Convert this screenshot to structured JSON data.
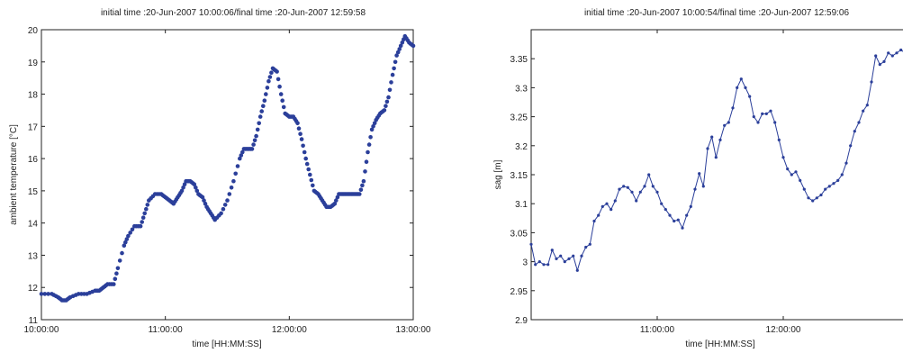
{
  "chart_data": [
    {
      "type": "scatter",
      "title": "initial time :20-Jun-2007 10:00:06/final time :20-Jun-2007 12:59:58",
      "xlabel": "time [HH:MM:SS]",
      "ylabel": "ambient temperature [°C]",
      "xlim": [
        "10:00:00",
        "13:00:00"
      ],
      "ylim": [
        11,
        20
      ],
      "xticks": [
        "10:00:00",
        "11:00:00",
        "12:00:00",
        "13:00:00"
      ],
      "yticks": [
        "11",
        "12",
        "13",
        "14",
        "15",
        "16",
        "17",
        "18",
        "19",
        "20"
      ],
      "grid": false,
      "marker_color": "#2b3f9a",
      "series": [
        {
          "x": [
            "10:00",
            "10:05",
            "10:08",
            "10:10",
            "10:12",
            "10:14",
            "10:18",
            "10:22",
            "10:26",
            "10:28",
            "10:30",
            "10:32",
            "10:35",
            "10:37",
            "10:40",
            "10:42",
            "10:45",
            "10:48",
            "10:50",
            "10:52",
            "10:55",
            "10:58",
            "11:00",
            "11:02",
            "11:04",
            "11:06",
            "11:08",
            "11:10",
            "11:12",
            "11:14",
            "11:16",
            "11:18",
            "11:20",
            "11:22",
            "11:24",
            "11:27",
            "11:30",
            "11:33",
            "11:36",
            "11:38",
            "11:40",
            "11:42",
            "11:44",
            "11:46",
            "11:48",
            "11:50",
            "11:52",
            "11:54",
            "11:56",
            "11:58",
            "12:00",
            "12:02",
            "12:04",
            "12:06",
            "12:08",
            "12:10",
            "12:12",
            "12:14",
            "12:16",
            "12:18",
            "12:20",
            "12:22",
            "12:24",
            "12:26",
            "12:28",
            "12:30",
            "12:32",
            "12:34",
            "12:36",
            "12:38",
            "12:40",
            "12:42",
            "12:44",
            "12:46",
            "12:48",
            "12:50",
            "12:52",
            "12:54",
            "12:56",
            "12:58",
            "13:00"
          ],
          "y": [
            11.8,
            11.8,
            11.7,
            11.6,
            11.6,
            11.7,
            11.8,
            11.8,
            11.9,
            11.9,
            12.0,
            12.1,
            12.1,
            12.6,
            13.3,
            13.6,
            13.9,
            13.9,
            14.3,
            14.7,
            14.9,
            14.9,
            14.8,
            14.7,
            14.6,
            14.8,
            15.0,
            15.3,
            15.3,
            15.2,
            14.9,
            14.8,
            14.5,
            14.3,
            14.1,
            14.3,
            14.7,
            15.3,
            16.0,
            16.3,
            16.3,
            16.3,
            16.7,
            17.3,
            17.8,
            18.4,
            18.8,
            18.7,
            18.0,
            17.4,
            17.3,
            17.3,
            17.1,
            16.6,
            16.0,
            15.5,
            15.0,
            14.9,
            14.7,
            14.5,
            14.5,
            14.6,
            14.9,
            14.9,
            14.9,
            14.9,
            14.9,
            14.9,
            15.3,
            16.2,
            16.9,
            17.2,
            17.4,
            17.5,
            17.9,
            18.6,
            19.2,
            19.5,
            19.8,
            19.6,
            19.5
          ]
        }
      ]
    },
    {
      "type": "line",
      "title": "initial time :20-Jun-2007 10:00:54/final time :20-Jun-2007 12:59:06",
      "xlabel": "time [HH:MM:SS]",
      "ylabel": "sag [m]",
      "xlim": [
        "10:00:00",
        "13:00:00"
      ],
      "ylim": [
        2.9,
        3.4
      ],
      "xticks": [
        "11:00:00",
        "12:00:00"
      ],
      "yticks": [
        "2.9",
        "2.95",
        "3",
        "3.05",
        "3.1",
        "3.15",
        "3.2",
        "3.25",
        "3.3",
        "3.35"
      ],
      "grid": false,
      "line_color": "#2b3f9a",
      "series": [
        {
          "x": [
            "10:00",
            "10:02",
            "10:04",
            "10:06",
            "10:08",
            "10:10",
            "10:12",
            "10:14",
            "10:16",
            "10:18",
            "10:20",
            "10:22",
            "10:24",
            "10:26",
            "10:28",
            "10:30",
            "10:32",
            "10:34",
            "10:36",
            "10:38",
            "10:40",
            "10:42",
            "10:44",
            "10:46",
            "10:48",
            "10:50",
            "10:52",
            "10:54",
            "10:56",
            "10:58",
            "11:00",
            "11:02",
            "11:04",
            "11:06",
            "11:08",
            "11:10",
            "11:12",
            "11:14",
            "11:16",
            "11:18",
            "11:20",
            "11:22",
            "11:24",
            "11:26",
            "11:28",
            "11:30",
            "11:32",
            "11:34",
            "11:36",
            "11:38",
            "11:40",
            "11:42",
            "11:44",
            "11:46",
            "11:48",
            "11:50",
            "11:52",
            "11:54",
            "11:56",
            "11:58",
            "12:00",
            "12:02",
            "12:04",
            "12:06",
            "12:08",
            "12:10",
            "12:12",
            "12:14",
            "12:16",
            "12:18",
            "12:20",
            "12:22",
            "12:24",
            "12:26",
            "12:28",
            "12:30",
            "12:32",
            "12:34",
            "12:36",
            "12:38",
            "12:40",
            "12:42",
            "12:44",
            "12:46",
            "12:48",
            "12:50",
            "12:52",
            "12:54",
            "12:56",
            "12:58",
            "13:00"
          ],
          "y": [
            3.03,
            2.995,
            3.0,
            2.995,
            2.995,
            3.02,
            3.005,
            3.01,
            3.0,
            3.005,
            3.01,
            2.985,
            3.01,
            3.025,
            3.03,
            3.07,
            3.08,
            3.095,
            3.1,
            3.09,
            3.105,
            3.125,
            3.13,
            3.128,
            3.12,
            3.105,
            3.12,
            3.13,
            3.15,
            3.13,
            3.12,
            3.1,
            3.09,
            3.08,
            3.07,
            3.072,
            3.058,
            3.08,
            3.095,
            3.125,
            3.152,
            3.13,
            3.195,
            3.215,
            3.18,
            3.21,
            3.235,
            3.24,
            3.265,
            3.3,
            3.315,
            3.3,
            3.285,
            3.25,
            3.24,
            3.255,
            3.255,
            3.26,
            3.24,
            3.21,
            3.18,
            3.16,
            3.15,
            3.155,
            3.14,
            3.125,
            3.11,
            3.105,
            3.11,
            3.115,
            3.125,
            3.13,
            3.135,
            3.14,
            3.15,
            3.17,
            3.2,
            3.225,
            3.24,
            3.26,
            3.27,
            3.31,
            3.355,
            3.34,
            3.345,
            3.36,
            3.355,
            3.36,
            3.365,
            3.36,
            3.365
          ]
        }
      ]
    }
  ]
}
